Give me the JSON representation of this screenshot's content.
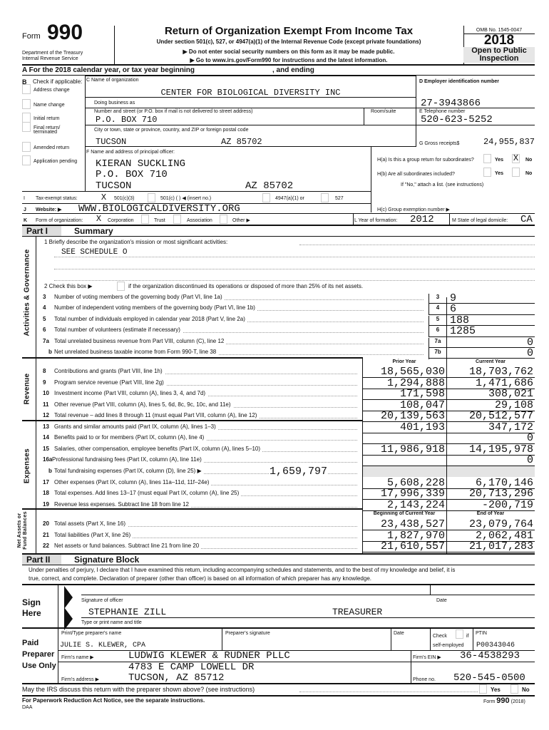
{
  "header": {
    "form_label": "Form",
    "form_number": "990",
    "dept": "Department of the Treasury",
    "irs": "Internal Revenue Service",
    "title": "Return of Organization Exempt From Income Tax",
    "subtitle": "Under section 501(c), 527, or 4947(a)(1) of the Internal Revenue Code (except private foundations)",
    "notice1": "▶ Do not enter social security numbers on this form as it may be made public.",
    "notice2": "▶ Go to www.irs.gov/Form990 for instructions and the latest information.",
    "omb": "OMB No. 1545-0047",
    "year": "2018",
    "open1": "Open to Public",
    "open2": "Inspection"
  },
  "lineA": {
    "text": "A   For the 2018 calendar year, or tax year beginning",
    "ending": ", and ending"
  },
  "B": {
    "letter": "B",
    "label": "Check if applicable:",
    "items": [
      "Address change",
      "Name change",
      "Initial return",
      "Final return/",
      "terminated",
      "Amended return",
      "Application pending"
    ]
  },
  "C": {
    "label": "C  Name of organization",
    "org_name": "CENTER FOR BIOLOGICAL DIVERSITY INC",
    "dba_label": "Doing business as",
    "street_label": "Number and street (or P.O. box if mail is not delivered to street address)",
    "room_label": "Room/suite",
    "street": "P.O. BOX 710",
    "city_label": "City or town, state or province, country, and ZIP or foreign postal code",
    "city": "TUCSON",
    "state_zip": "AZ 85702"
  },
  "D": {
    "label": "D  Employer identification number",
    "ein": "27-3943866"
  },
  "E": {
    "label": "E  Telephone number",
    "phone": "520-623-5252"
  },
  "G": {
    "label": "G Gross receipts$",
    "value": "24,955,837"
  },
  "F": {
    "label": "F  Name and address of principal officer:",
    "name": "KIERAN SUCKLING",
    "addr": "P.O. BOX 710",
    "city": "TUCSON",
    "state_zip": "AZ 85702"
  },
  "H": {
    "ha": "H(a)  Is this a group return for subordinates?",
    "hb": "H(b)  Are all subordinates included?",
    "note": "If \"No,\" attach a list. (see instructions)",
    "hc": "H(c)  Group exemption number ▶",
    "yes": "Yes",
    "no": "No",
    "ha_no_mark": "X"
  },
  "I": {
    "letter": "I",
    "label": "Tax-exempt status:",
    "mark": "X",
    "opt1": "501(c)(3)",
    "opt2": "501(c)  (         ) ◀ (insert no.)",
    "opt3": "4947(a)(1) or",
    "opt4": "527"
  },
  "J": {
    "letter": "J",
    "label": "Website: ▶",
    "value": "WWW.BIOLOGICALDIVERSITY.ORG"
  },
  "K": {
    "letter": "K",
    "label": "Form of organization:",
    "mark": "X",
    "opts": [
      "Corporation",
      "Trust",
      "Association",
      "Other ▶"
    ]
  },
  "L": {
    "label": "L  Year of formation:",
    "value": "2012"
  },
  "M": {
    "label": "M  State of legal domicile:",
    "value": "CA"
  },
  "part1": {
    "label": "Part I",
    "title": "Summary",
    "side_gov": "Activities & Governance",
    "side_rev": "Revenue",
    "side_exp": "Expenses",
    "side_net1": "Net Assets or",
    "side_net2": "Fund Balances",
    "line1": "1  Briefly describe the organization's mission or most significant activities:",
    "mission": "SEE SCHEDULE O",
    "line2": "2  Check this box ▶",
    "line2b": "if the organization discontinued its operations or disposed of more than 25% of its net assets.",
    "gov": [
      {
        "num": "3",
        "text": "Number of voting members of the governing body (Part VI, line 1a)",
        "box": "3",
        "value": "9"
      },
      {
        "num": "4",
        "text": "Number of independent voting members of the governing body (Part VI, line 1b)",
        "box": "4",
        "value": "6"
      },
      {
        "num": "5",
        "text": "Total number of individuals employed in calendar year 2018 (Part V, line 2a)",
        "box": "5",
        "value": "188"
      },
      {
        "num": "6",
        "text": "Total number of volunteers (estimate if necessary)",
        "box": "6",
        "value": "1285"
      },
      {
        "num": "7a",
        "text": "Total unrelated business revenue from Part VIII, column (C), line 12",
        "box": "7a",
        "value": "0"
      },
      {
        "num": "b",
        "text": "Net unrelated business taxable income from Form 990-T, line 38",
        "box": "7b",
        "value": "0"
      }
    ],
    "col_prior": "Prior Year",
    "col_current": "Current Year",
    "fin": [
      {
        "num": "8",
        "text": "Contributions and grants (Part VIII, line 1h)",
        "prior": "18,565,030",
        "current": "18,703,762"
      },
      {
        "num": "9",
        "text": "Program service revenue (Part VIII, line 2g)",
        "prior": "1,294,888",
        "current": "1,471,686"
      },
      {
        "num": "10",
        "text": "Investment income (Part VIII, column (A), lines 3, 4, and 7d)",
        "prior": "171,598",
        "current": "308,021"
      },
      {
        "num": "11",
        "text": "Other revenue (Part VIII, column (A), lines 5, 6d, 8c, 9c, 10c, and 11e)",
        "prior": "108,047",
        "current": "29,108"
      },
      {
        "num": "12",
        "text": "Total revenue – add lines 8 through 11 (must equal Part VIII, column (A), line 12)",
        "prior": "20,139,563",
        "current": "20,512,577"
      },
      {
        "num": "13",
        "text": "Grants and similar amounts paid (Part IX, column (A), lines 1–3)",
        "prior": "401,193",
        "current": "347,172"
      },
      {
        "num": "14",
        "text": "Benefits paid to or for members (Part IX, column (A), line 4)",
        "prior": "",
        "current": "0"
      },
      {
        "num": "15",
        "text": "Salaries, other compensation, employee benefits (Part IX, column (A), lines 5–10)",
        "prior": "11,986,918",
        "current": "14,195,978"
      },
      {
        "num": "16a",
        "text": "Professional fundraising fees (Part IX, column (A), line 11e)",
        "prior": "",
        "current": "0"
      },
      {
        "num": "b",
        "text": "Total fundraising expenses (Part IX, column (D), line 25) ▶",
        "inline": "1,659,797",
        "shaded": true
      },
      {
        "num": "17",
        "text": "Other expenses (Part IX, column (A), lines 11a–11d, 11f–24e)",
        "prior": "5,608,228",
        "current": "6,170,146"
      },
      {
        "num": "18",
        "text": "Total expenses. Add lines 13–17 (must equal Part IX, column (A), line 25)",
        "prior": "17,996,339",
        "current": "20,713,296"
      },
      {
        "num": "19",
        "text": "Revenue less expenses. Subtract line 18 from line 12",
        "prior": "2,143,224",
        "current": "-200,719"
      }
    ],
    "col_begin": "Beginning of Current Year",
    "col_end": "End of Year",
    "net": [
      {
        "num": "20",
        "text": "Total assets (Part X, line 16)",
        "prior": "23,438,527",
        "current": "23,079,764"
      },
      {
        "num": "21",
        "text": "Total liabilities (Part X, line 26)",
        "prior": "1,827,970",
        "current": "2,062,481"
      },
      {
        "num": "22",
        "text": "Net assets or fund balances. Subtract line 21 from line 20",
        "prior": "21,610,557",
        "current": "21,017,283"
      }
    ]
  },
  "part2": {
    "label": "Part II",
    "title": "Signature Block",
    "perjury1": "Under penalties of perjury, I declare that I have examined this return, including accompanying schedules and statements, and to the best of my knowledge and belief, it is",
    "perjury2": "true, correct, and complete. Declaration of preparer (other than officer) is based on all information of which preparer has any knowledge.",
    "sign": "Sign",
    "here": "Here",
    "sig_label": "Signature of officer",
    "date_label": "Date",
    "officer_name": "STEPHANIE ZILL",
    "officer_title": "TREASURER",
    "name_title_label": "Type or print name and title",
    "paid": "Paid",
    "preparer": "Preparer",
    "use_only": "Use Only",
    "prep_name_label": "Print/Type preparer's name",
    "prep_sig_label": "Preparer's signature",
    "prep_date_label": "Date",
    "check_label": "Check",
    "if_label": "if",
    "self_employed": "self-employed",
    "ptin_label": "PTIN",
    "prep_name": "JULIE S. KLEWER, CPA",
    "ptin": "P00343046",
    "firm_name_label": "Firm's name     ▶",
    "firm_name": "LUDWIG KLEWER & RUDNER PLLC",
    "firm_ein_label": "Firm's EIN ▶",
    "firm_ein": "36-4538293",
    "firm_addr_label": "Firm's address   ▶",
    "firm_addr1": "4783 E CAMP LOWELL DR",
    "firm_addr2": "TUCSON, AZ  85712",
    "phone_label": "Phone no.",
    "phone": "520-545-0500",
    "discuss": "May the IRS discuss this return with the preparer shown above? (see instructions)",
    "yes": "Yes",
    "no": "No"
  },
  "footer": {
    "notice": "For Paperwork Reduction Act Notice, see the separate instructions.",
    "daa": "DAA",
    "form_label": "Form",
    "form_number": "990",
    "year": "(2018)"
  }
}
